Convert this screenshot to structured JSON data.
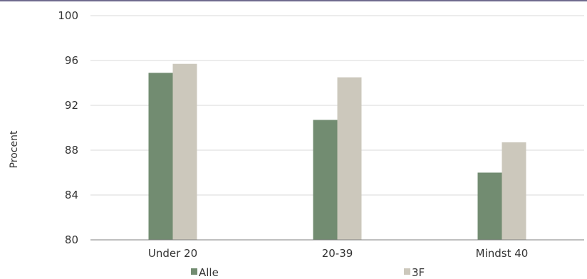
{
  "chart_data": {
    "type": "bar",
    "categories": [
      "Under 20",
      "20-39",
      "Mindst 40"
    ],
    "series": [
      {
        "name": "Alle",
        "values": [
          94.9,
          90.7,
          86.0
        ],
        "color": "#728c71"
      },
      {
        "name": "3F",
        "values": [
          95.7,
          94.5,
          88.7
        ],
        "color": "#ccc8bc"
      }
    ],
    "ylabel": "Procent",
    "ylim": [
      80,
      100
    ],
    "yticks": [
      80,
      84,
      88,
      92,
      96,
      100
    ],
    "grid": true,
    "legend_position": "bottom"
  },
  "colors": {
    "gridline": "#d9d9d9",
    "axis": "#7f7f7f",
    "top_rule": "#6f6a8e"
  }
}
